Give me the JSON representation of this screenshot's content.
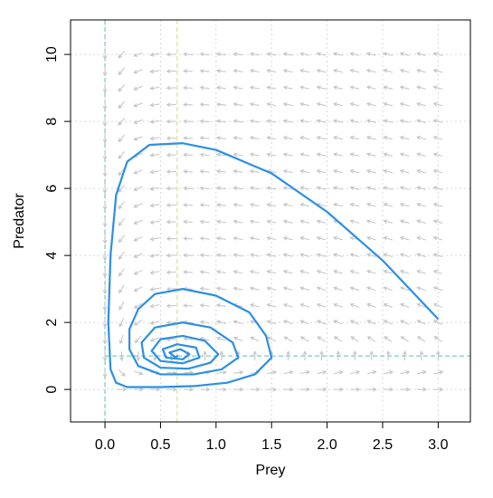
{
  "chart_data": {
    "type": "line",
    "xlabel": "Prey",
    "ylabel": "Predator",
    "xlim": [
      -0.31,
      3.29
    ],
    "ylim": [
      -0.97,
      11.03
    ],
    "xticks": [
      {
        "value": 0,
        "label": "0.0"
      },
      {
        "value": 0.5,
        "label": "0.5"
      },
      {
        "value": 1,
        "label": "1.0"
      },
      {
        "value": 1.5,
        "label": "1.5"
      },
      {
        "value": 2,
        "label": "2.0"
      },
      {
        "value": 2.5,
        "label": "2.5"
      },
      {
        "value": 3,
        "label": "3.0"
      }
    ],
    "yticks": [
      0,
      2,
      4,
      6,
      8,
      10
    ],
    "grid": true,
    "color": "#2b8fe6",
    "field_color": "#c4c4c4",
    "x": [
      3.0,
      2.5,
      2.0,
      1.5,
      1.0,
      0.7,
      0.4,
      0.2,
      0.1,
      0.05,
      0.03,
      0.05,
      0.1,
      0.2,
      0.5,
      0.8,
      1.1,
      1.35,
      1.5,
      1.45,
      1.3,
      1.0,
      0.7,
      0.45,
      0.3,
      0.22,
      0.22,
      0.3,
      0.5,
      0.8,
      1.05,
      1.2,
      1.15,
      0.95,
      0.7,
      0.45,
      0.33,
      0.35,
      0.5,
      0.75,
      0.95,
      1.02,
      0.9,
      0.7,
      0.5,
      0.42,
      0.5,
      0.7,
      0.85,
      0.82,
      0.65,
      0.52,
      0.55,
      0.7,
      0.76,
      0.68,
      0.58,
      0.63,
      0.66
    ],
    "values": [
      2.1,
      3.85,
      5.3,
      6.45,
      7.15,
      7.35,
      7.3,
      6.8,
      5.8,
      4.0,
      2.0,
      0.6,
      0.2,
      0.07,
      0.07,
      0.1,
      0.2,
      0.45,
      0.95,
      1.6,
      2.3,
      2.8,
      3.0,
      2.85,
      2.4,
      1.8,
      1.2,
      0.7,
      0.45,
      0.45,
      0.6,
      0.95,
      1.4,
      1.85,
      2.0,
      1.85,
      1.4,
      0.95,
      0.65,
      0.62,
      0.8,
      1.05,
      1.45,
      1.6,
      1.5,
      1.15,
      0.85,
      0.78,
      0.95,
      1.25,
      1.35,
      1.2,
      0.95,
      0.9,
      1.05,
      1.2,
      1.1,
      0.97,
      1.0
    ],
    "nullclines": [
      {
        "axis": "x",
        "value": 0,
        "color": "#5fbfb0"
      },
      {
        "axis": "x",
        "value": 0.65,
        "color": "#c8e07a"
      },
      {
        "axis": "y",
        "value": 1,
        "color": "#5fbfb0"
      }
    ]
  }
}
